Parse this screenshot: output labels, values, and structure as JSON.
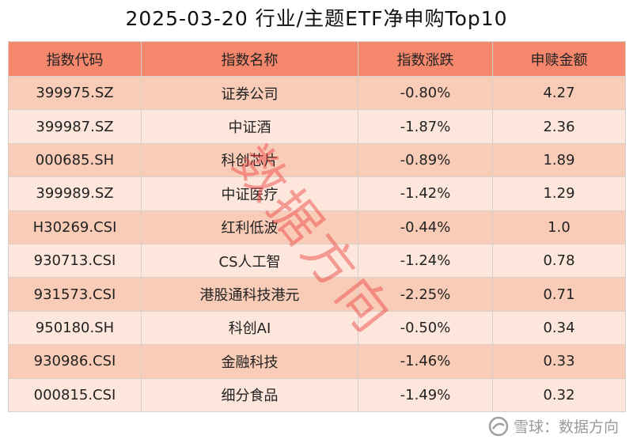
{
  "title": "2025-03-20 行业/主题ETF净申购Top10",
  "table": {
    "header": [
      "指数代码",
      "指数名称",
      "指数涨跌",
      "申赎金额"
    ],
    "rows": [
      [
        "399975.SZ",
        "证券公司",
        "-0.80%",
        "4.27"
      ],
      [
        "399987.SZ",
        "中证酒",
        "-1.87%",
        "2.36"
      ],
      [
        "000685.SH",
        "科创芯片",
        "-0.89%",
        "1.89"
      ],
      [
        "399989.SZ",
        "中证医疗",
        "-1.42%",
        "1.29"
      ],
      [
        "H30269.CSI",
        "红利低波",
        "-0.44%",
        "1.0"
      ],
      [
        "930713.CSI",
        "CS人工智",
        "-1.24%",
        "0.78"
      ],
      [
        "931573.CSI",
        "港股通科技港元",
        "-2.25%",
        "0.71"
      ],
      [
        "950180.SH",
        "科创AI",
        "-0.50%",
        "0.34"
      ],
      [
        "930986.CSI",
        "金融科技",
        "-1.46%",
        "0.33"
      ],
      [
        "000815.CSI",
        "细分食品",
        "-1.49%",
        "0.32"
      ]
    ]
  },
  "watermark": "数据方向",
  "footer": "雪球：数据方向"
}
